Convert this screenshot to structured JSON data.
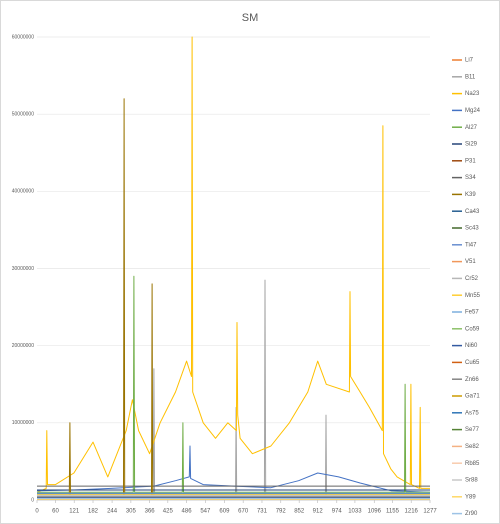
{
  "chart_data": {
    "type": "line",
    "title": "SM",
    "xlim": [
      0,
      1277
    ],
    "xticks": [
      0,
      60,
      121,
      182,
      244,
      305,
      366,
      425,
      486,
      547,
      609,
      670,
      731,
      792,
      852,
      912,
      974,
      1033,
      1096,
      1155,
      1216,
      1277
    ],
    "ylim": [
      0,
      60000000
    ],
    "yticks": [
      0,
      10000000,
      20000000,
      30000000,
      40000000,
      50000000,
      60000000
    ],
    "grid": true,
    "legend": "right",
    "series": [
      {
        "name": "Li7",
        "color": "#ed7d31",
        "x": [
          0,
          640,
          1277
        ],
        "values": [
          200000,
          250000,
          200000
        ]
      },
      {
        "name": "B11",
        "color": "#a5a5a5",
        "x": [
          0,
          378,
          380,
          382,
          645,
          647,
          649,
          739,
          741,
          743,
          937,
          939,
          941,
          1277
        ],
        "values": [
          300000,
          300000,
          17000000,
          300000,
          300000,
          12000000,
          300000,
          300000,
          28500000,
          300000,
          300000,
          11000000,
          300000,
          300000
        ]
      },
      {
        "name": "Na23",
        "color": "#ffc000",
        "x": [
          0,
          30,
          32,
          34,
          60,
          120,
          182,
          230,
          290,
          310,
          330,
          366,
          400,
          450,
          486,
          502,
          504,
          506,
          540,
          580,
          620,
          648,
          650,
          652,
          660,
          700,
          760,
          820,
          880,
          912,
          940,
          1015,
          1017,
          1019,
          1050,
          1080,
          1122,
          1124,
          1126,
          1150,
          1170,
          1213,
          1215,
          1217,
          1243,
          1245,
          1247,
          1277
        ],
        "values": [
          1000000,
          1500000,
          9000000,
          2000000,
          2000000,
          3500000,
          7500000,
          3000000,
          9000000,
          13000000,
          9000000,
          6000000,
          10000000,
          14000000,
          18000000,
          16000000,
          60000000,
          14000000,
          10000000,
          8000000,
          10000000,
          9000000,
          23000000,
          11000000,
          8000000,
          6000000,
          7000000,
          10000000,
          14000000,
          18000000,
          15000000,
          14000000,
          27000000,
          16000000,
          14000000,
          12000000,
          9000000,
          48500000,
          6000000,
          4000000,
          3000000,
          2000000,
          15000000,
          2000000,
          1500000,
          12000000,
          1500000,
          1500000
        ]
      },
      {
        "name": "Mg24",
        "color": "#4472c4",
        "x": [
          0,
          120,
          240,
          380,
          450,
          495,
          497,
          499,
          540,
          640,
          760,
          850,
          912,
          980,
          1050,
          1150,
          1277
        ],
        "values": [
          1200000,
          1300000,
          1500000,
          1800000,
          2500000,
          3000000,
          7000000,
          2800000,
          2000000,
          1800000,
          1600000,
          2500000,
          3500000,
          3000000,
          2200000,
          1200000,
          1000000
        ]
      },
      {
        "name": "Al27",
        "color": "#70ad47",
        "x": [
          0,
          313,
          315,
          317,
          472,
          474,
          476,
          1194,
          1196,
          1198,
          1277
        ],
        "values": [
          1000000,
          1000000,
          29000000,
          1000000,
          1000000,
          10000000,
          1000000,
          1000000,
          15000000,
          1000000,
          1000000
        ]
      },
      {
        "name": "Si29",
        "color": "#264478",
        "x": [
          0,
          640,
          1277
        ],
        "values": [
          1300000,
          1300000,
          1300000
        ]
      },
      {
        "name": "P31",
        "color": "#9e480e",
        "x": [
          0,
          640,
          1277
        ],
        "values": [
          400000,
          450000,
          400000
        ]
      },
      {
        "name": "S34",
        "color": "#636363",
        "x": [
          0,
          640,
          1277
        ],
        "values": [
          1800000,
          1800000,
          1800000
        ]
      },
      {
        "name": "K39",
        "color": "#997300",
        "x": [
          0,
          105,
          107,
          109,
          281,
          283,
          285,
          372,
          374,
          376,
          1277
        ],
        "values": [
          500000,
          500000,
          10000000,
          500000,
          500000,
          52000000,
          500000,
          500000,
          28000000,
          500000,
          500000
        ]
      },
      {
        "name": "Ca43",
        "color": "#255e91",
        "x": [
          0,
          640,
          1277
        ],
        "values": [
          800000,
          800000,
          800000
        ]
      },
      {
        "name": "Sc43",
        "color": "#43682b",
        "x": [
          0,
          640,
          1277
        ],
        "values": [
          600000,
          600000,
          600000
        ]
      },
      {
        "name": "Ti47",
        "color": "#698ed0",
        "x": [
          0,
          640,
          1277
        ],
        "values": [
          300000,
          300000,
          300000
        ]
      },
      {
        "name": "V51",
        "color": "#f1975a",
        "x": [
          0,
          640,
          1277
        ],
        "values": [
          100000,
          100000,
          100000
        ]
      },
      {
        "name": "Cr52",
        "color": "#b7b7b7",
        "x": [
          0,
          640,
          1277
        ],
        "values": [
          500000,
          500000,
          500000
        ]
      },
      {
        "name": "Mn55",
        "color": "#ffcd33",
        "x": [
          0,
          640,
          1277
        ],
        "values": [
          700000,
          700000,
          700000
        ]
      },
      {
        "name": "Fe57",
        "color": "#7cafdd",
        "x": [
          0,
          640,
          1277
        ],
        "values": [
          900000,
          900000,
          900000
        ]
      },
      {
        "name": "Co59",
        "color": "#8cc168",
        "x": [
          0,
          640,
          1277
        ],
        "values": [
          200000,
          200000,
          200000
        ]
      },
      {
        "name": "Ni60",
        "color": "#335aa1",
        "x": [
          0,
          640,
          1277
        ],
        "values": [
          300000,
          300000,
          300000
        ]
      },
      {
        "name": "Cu65",
        "color": "#d26012",
        "x": [
          0,
          640,
          1277
        ],
        "values": [
          200000,
          200000,
          200000
        ]
      },
      {
        "name": "Zn66",
        "color": "#848484",
        "x": [
          0,
          640,
          1277
        ],
        "values": [
          400000,
          400000,
          400000
        ]
      },
      {
        "name": "Ga71",
        "color": "#cc9a00",
        "x": [
          0,
          640,
          1277
        ],
        "values": [
          150000,
          150000,
          150000
        ]
      },
      {
        "name": "As75",
        "color": "#2e75b6",
        "x": [
          0,
          640,
          1277
        ],
        "values": [
          100000,
          100000,
          100000
        ]
      },
      {
        "name": "Se77",
        "color": "#548235",
        "x": [
          0,
          640,
          1277
        ],
        "values": [
          200000,
          200000,
          200000
        ]
      },
      {
        "name": "Se82",
        "color": "#f4b183",
        "x": [
          0,
          640,
          1277
        ],
        "values": [
          150000,
          150000,
          150000
        ]
      },
      {
        "name": "Rb85",
        "color": "#f8cbad",
        "x": [
          0,
          640,
          1277
        ],
        "values": [
          100000,
          100000,
          100000
        ]
      },
      {
        "name": "Sr88",
        "color": "#c9c9c9",
        "x": [
          0,
          640,
          1277
        ],
        "values": [
          600000,
          600000,
          600000
        ]
      },
      {
        "name": "Y89",
        "color": "#ffd966",
        "x": [
          0,
          640,
          1277
        ],
        "values": [
          100000,
          100000,
          100000
        ]
      },
      {
        "name": "Zr90",
        "color": "#9dc3e6",
        "x": [
          0,
          640,
          1277
        ],
        "values": [
          200000,
          200000,
          200000
        ]
      }
    ]
  }
}
